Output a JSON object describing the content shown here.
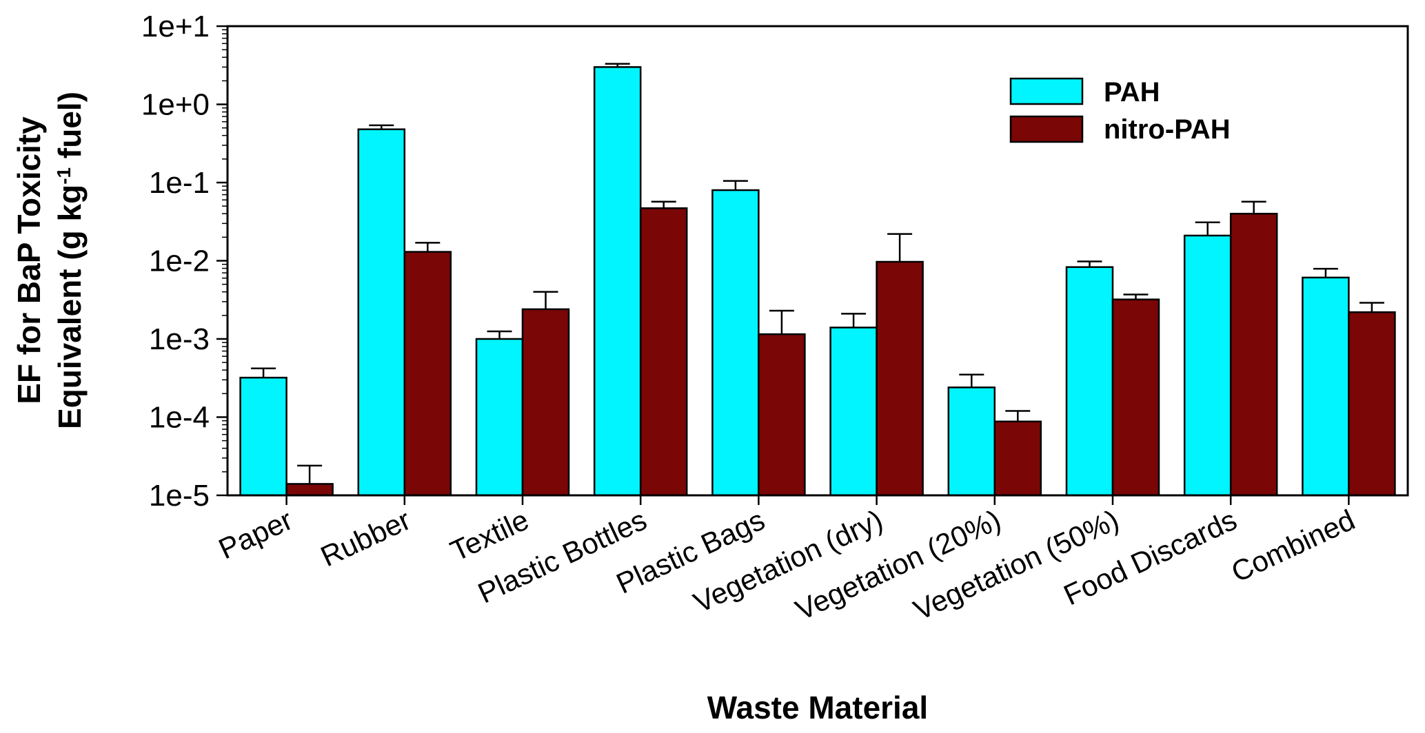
{
  "chart_data": {
    "type": "bar",
    "yscale": "log",
    "ylim": [
      1e-05,
      10
    ],
    "ytick_labels": [
      "1e-5",
      "1e-4",
      "1e-3",
      "1e-2",
      "1e-1",
      "1e+0",
      "1e+1"
    ],
    "categories": [
      "Paper",
      "Rubber",
      "Textile",
      "Plastic Bottles",
      "Plastic Bags",
      "Vegetation (dry)",
      "Vegetation (20%)",
      "Vegetation (50%)",
      "Food Discards",
      "Combined"
    ],
    "series": [
      {
        "name": "PAH",
        "color": "#00f5ff",
        "values": [
          0.00032,
          0.48,
          0.001,
          3.0,
          0.08,
          0.0014,
          0.00024,
          0.0083,
          0.021,
          0.0061
        ],
        "error_upper": [
          0.00042,
          0.54,
          0.00125,
          3.3,
          0.105,
          0.0021,
          0.00035,
          0.0098,
          0.031,
          0.0079
        ]
      },
      {
        "name": "nitro-PAH",
        "color": "#7a0606",
        "values": [
          1.4e-05,
          0.013,
          0.0024,
          0.047,
          0.00115,
          0.0097,
          8.8e-05,
          0.0032,
          0.04,
          0.0022
        ],
        "error_upper": [
          2.4e-05,
          0.017,
          0.004,
          0.057,
          0.0023,
          0.022,
          0.00012,
          0.0037,
          0.057,
          0.0029
        ]
      }
    ],
    "xlabel": "Waste Material",
    "ylabel_line1": "EF for BaP Toxicity",
    "ylabel_line2_prefix": "Equivalent (g kg",
    "ylabel_superscript": "-1",
    "ylabel_line2_suffix": " fuel)",
    "legend_position": "top-right",
    "grid": false
  }
}
